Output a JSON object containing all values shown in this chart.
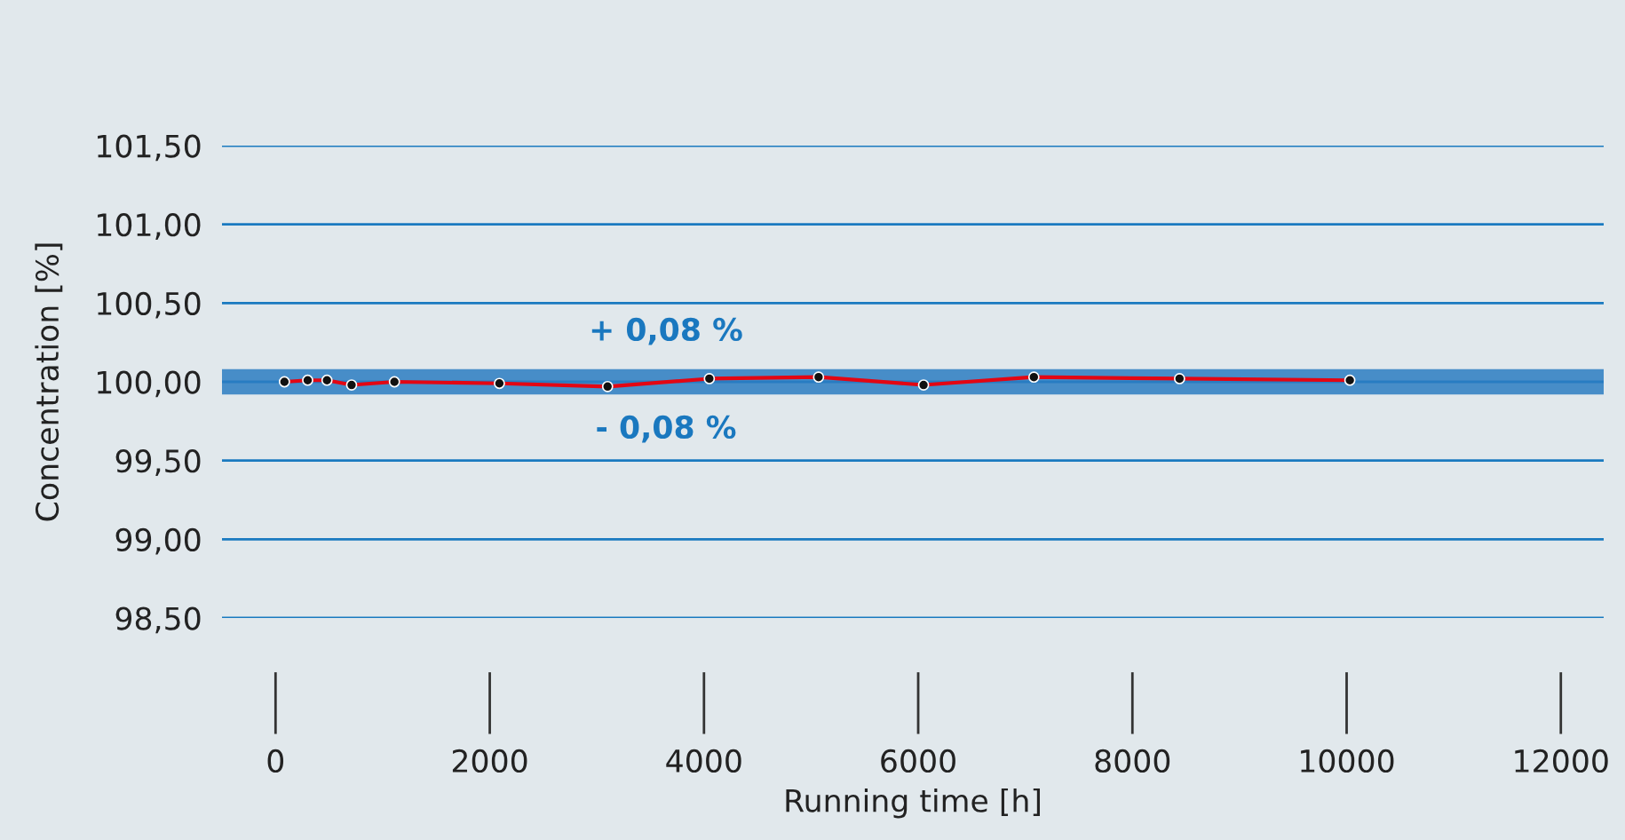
{
  "chart_data": {
    "type": "line",
    "xlabel": "Running time [h]",
    "ylabel": "Concentration [%]",
    "x": [
      83,
      300,
      480,
      710,
      1110,
      2090,
      3100,
      4050,
      5070,
      6050,
      7080,
      8440,
      10030
    ],
    "series": [
      {
        "color": "#e30613",
        "values": [
          100.0,
          100.01,
          100.01,
          99.98,
          100.0,
          99.99,
          99.97,
          100.02,
          100.03,
          99.98,
          100.03,
          100.02,
          100.01
        ]
      }
    ],
    "marker": "circle",
    "line_style": "solid",
    "xlim": [
      -500,
      12400
    ],
    "ylim": [
      98.5,
      101.5
    ],
    "xticks": [
      0,
      2000,
      4000,
      6000,
      8000,
      10000,
      12000
    ],
    "yticks": [
      {
        "value": 98.5,
        "label": "98,50"
      },
      {
        "value": 99.0,
        "label": "99,00"
      },
      {
        "value": 99.5,
        "label": "99,50"
      },
      {
        "value": 100.0,
        "label": "100,00"
      },
      {
        "value": 100.5,
        "label": "100,50"
      },
      {
        "value": 101.0,
        "label": "101,00"
      },
      {
        "value": 101.5,
        "label": "101,50"
      }
    ],
    "grid": "y",
    "bands": [
      {
        "axis": "y",
        "from": 99.92,
        "to": 100.08,
        "color": "#2b7cc2"
      }
    ],
    "annotations": [
      "+ 0,08 %",
      "- 0,08 %"
    ]
  }
}
